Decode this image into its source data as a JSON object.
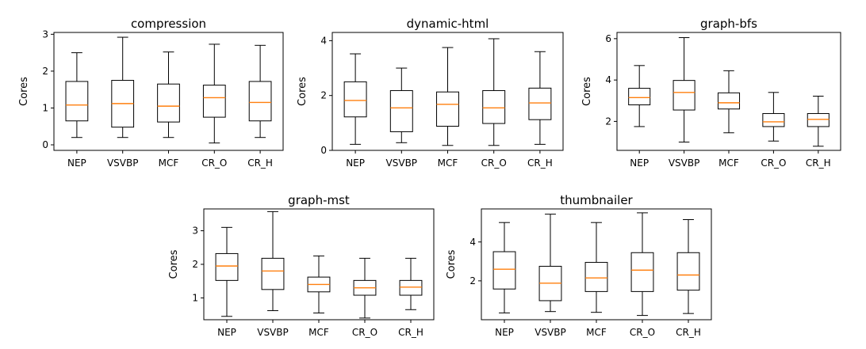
{
  "colors": {
    "median": "#ff7f0e",
    "box": "#000000"
  },
  "chart_data": [
    {
      "type": "box",
      "title": "compression",
      "ylabel": "Cores",
      "categories": [
        "NEP",
        "VSVBP",
        "MCF",
        "CR_O",
        "CR_H"
      ],
      "ylim": [
        -0.15,
        3.05
      ],
      "yticks": [
        0,
        1,
        2,
        3
      ],
      "boxes": [
        {
          "whislo": 0.2,
          "q1": 0.65,
          "med": 1.08,
          "q3": 1.72,
          "whishi": 2.5
        },
        {
          "whislo": 0.2,
          "q1": 0.48,
          "med": 1.12,
          "q3": 1.75,
          "whishi": 2.92
        },
        {
          "whislo": 0.2,
          "q1": 0.62,
          "med": 1.05,
          "q3": 1.65,
          "whishi": 2.52
        },
        {
          "whislo": 0.05,
          "q1": 0.75,
          "med": 1.28,
          "q3": 1.62,
          "whishi": 2.73
        },
        {
          "whislo": 0.2,
          "q1": 0.65,
          "med": 1.15,
          "q3": 1.72,
          "whishi": 2.7
        }
      ]
    },
    {
      "type": "box",
      "title": "dynamic-html",
      "ylabel": "Cores",
      "categories": [
        "NEP",
        "VSVBP",
        "MCF",
        "CR_O",
        "CR_H"
      ],
      "ylim": [
        0,
        4.3
      ],
      "yticks": [
        0,
        2,
        4
      ],
      "boxes": [
        {
          "whislo": 0.22,
          "q1": 1.22,
          "med": 1.82,
          "q3": 2.5,
          "whishi": 3.52
        },
        {
          "whislo": 0.28,
          "q1": 0.68,
          "med": 1.55,
          "q3": 2.18,
          "whishi": 3.0
        },
        {
          "whislo": 0.18,
          "q1": 0.88,
          "med": 1.68,
          "q3": 2.13,
          "whishi": 3.75
        },
        {
          "whislo": 0.18,
          "q1": 0.98,
          "med": 1.55,
          "q3": 2.18,
          "whishi": 4.07
        },
        {
          "whislo": 0.22,
          "q1": 1.12,
          "med": 1.73,
          "q3": 2.27,
          "whishi": 3.6
        }
      ]
    },
    {
      "type": "box",
      "title": "graph-bfs",
      "ylabel": "Cores",
      "categories": [
        "NEP",
        "VSVBP",
        "MCF",
        "CR_O",
        "CR_H"
      ],
      "ylim": [
        0.6,
        6.3
      ],
      "yticks": [
        2,
        4,
        6
      ],
      "boxes": [
        {
          "whislo": 1.75,
          "q1": 2.8,
          "med": 3.15,
          "q3": 3.6,
          "whishi": 4.7
        },
        {
          "whislo": 1.0,
          "q1": 2.55,
          "med": 3.4,
          "q3": 3.98,
          "whishi": 6.05
        },
        {
          "whislo": 1.45,
          "q1": 2.6,
          "med": 2.9,
          "q3": 3.38,
          "whishi": 4.45
        },
        {
          "whislo": 1.05,
          "q1": 1.75,
          "med": 1.98,
          "q3": 2.38,
          "whishi": 3.4
        },
        {
          "whislo": 0.8,
          "q1": 1.75,
          "med": 2.1,
          "q3": 2.38,
          "whishi": 3.22
        }
      ]
    },
    {
      "type": "box",
      "title": "graph-mst",
      "ylabel": "Cores",
      "categories": [
        "NEP",
        "VSVBP",
        "MCF",
        "CR_O",
        "CR_H"
      ],
      "ylim": [
        0.35,
        3.65
      ],
      "yticks": [
        1,
        2,
        3
      ],
      "boxes": [
        {
          "whislo": 0.45,
          "q1": 1.52,
          "med": 1.95,
          "q3": 2.32,
          "whishi": 3.1
        },
        {
          "whislo": 0.62,
          "q1": 1.25,
          "med": 1.8,
          "q3": 2.18,
          "whishi": 3.57
        },
        {
          "whislo": 0.55,
          "q1": 1.18,
          "med": 1.4,
          "q3": 1.62,
          "whishi": 2.25
        },
        {
          "whislo": 0.4,
          "q1": 1.08,
          "med": 1.3,
          "q3": 1.52,
          "whishi": 2.18
        },
        {
          "whislo": 0.65,
          "q1": 1.08,
          "med": 1.32,
          "q3": 1.52,
          "whishi": 2.18
        }
      ]
    },
    {
      "type": "box",
      "title": "thumbnailer",
      "ylabel": "Cores",
      "categories": [
        "NEP",
        "VSVBP",
        "MCF",
        "CR_O",
        "CR_H"
      ],
      "ylim": [
        0,
        5.7
      ],
      "yticks": [
        2,
        4
      ],
      "boxes": [
        {
          "whislo": 0.35,
          "q1": 1.58,
          "med": 2.6,
          "q3": 3.5,
          "whishi": 5.0
        },
        {
          "whislo": 0.42,
          "q1": 0.98,
          "med": 1.88,
          "q3": 2.75,
          "whishi": 5.43
        },
        {
          "whislo": 0.38,
          "q1": 1.45,
          "med": 2.15,
          "q3": 2.95,
          "whishi": 5.0
        },
        {
          "whislo": 0.22,
          "q1": 1.45,
          "med": 2.55,
          "q3": 3.45,
          "whishi": 5.5
        },
        {
          "whislo": 0.32,
          "q1": 1.52,
          "med": 2.3,
          "q3": 3.45,
          "whishi": 5.15
        }
      ]
    }
  ]
}
